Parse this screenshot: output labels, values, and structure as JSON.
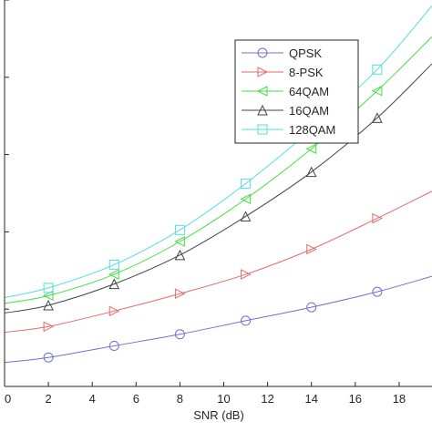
{
  "chart_data": {
    "type": "line",
    "title": "",
    "xlabel": "SNR (dB)",
    "ylabel": "",
    "xlim": [
      0,
      19.5
    ],
    "ylim": [
      0,
      1
    ],
    "xticks": [
      0,
      2,
      4,
      6,
      8,
      10,
      12,
      14,
      16,
      18
    ],
    "yticks": [
      0,
      0.2,
      0.4,
      0.6,
      0.8,
      1.0
    ],
    "grid": false,
    "legend_position": "top-right",
    "series": [
      {
        "name": "QPSK",
        "marker": "circle",
        "color": "#6f6fd6",
        "x": [
          2,
          5,
          8,
          11,
          14,
          17
        ],
        "y": [
          0.075,
          0.105,
          0.135,
          0.17,
          0.205,
          0.245
        ],
        "curve_x": [
          0,
          2,
          5,
          8,
          11,
          14,
          17,
          19.5
        ],
        "curve_y": [
          0.062,
          0.075,
          0.105,
          0.135,
          0.17,
          0.205,
          0.245,
          0.285
        ]
      },
      {
        "name": "8-PSK",
        "marker": "triangle-right",
        "color": "#e36a6a",
        "x": [
          2,
          5,
          8,
          11,
          14,
          17
        ],
        "y": [
          0.155,
          0.195,
          0.24,
          0.29,
          0.355,
          0.435
        ],
        "curve_x": [
          0,
          2,
          5,
          8,
          11,
          14,
          17,
          19.5
        ],
        "curve_y": [
          0.14,
          0.155,
          0.195,
          0.24,
          0.29,
          0.355,
          0.435,
          0.505
        ]
      },
      {
        "name": "64QAM",
        "marker": "triangle-left",
        "color": "#44dd44",
        "x": [
          2,
          5,
          8,
          11,
          14,
          17
        ],
        "y": [
          0.235,
          0.29,
          0.375,
          0.485,
          0.615,
          0.765
        ],
        "curve_x": [
          0,
          2,
          5,
          8,
          11,
          14,
          17,
          19.5
        ],
        "curve_y": [
          0.215,
          0.235,
          0.29,
          0.375,
          0.485,
          0.615,
          0.765,
          0.905
        ]
      },
      {
        "name": "16QAM",
        "marker": "triangle-up",
        "color": "#444444",
        "x": [
          2,
          5,
          8,
          11,
          14,
          17
        ],
        "y": [
          0.21,
          0.265,
          0.34,
          0.44,
          0.555,
          0.695
        ],
        "curve_x": [
          0,
          2,
          5,
          8,
          11,
          14,
          17,
          19.5
        ],
        "curve_y": [
          0.19,
          0.21,
          0.265,
          0.34,
          0.44,
          0.555,
          0.695,
          0.835
        ]
      },
      {
        "name": "128QAM",
        "marker": "square",
        "color": "#55dddd",
        "x": [
          2,
          5,
          8,
          11,
          14,
          17
        ],
        "y": [
          0.255,
          0.315,
          0.405,
          0.525,
          0.665,
          0.82
        ],
        "curve_x": [
          0,
          2,
          5,
          8,
          11,
          14,
          17,
          19.5
        ],
        "curve_y": [
          0.23,
          0.255,
          0.315,
          0.405,
          0.525,
          0.665,
          0.82,
          0.985
        ]
      }
    ]
  }
}
